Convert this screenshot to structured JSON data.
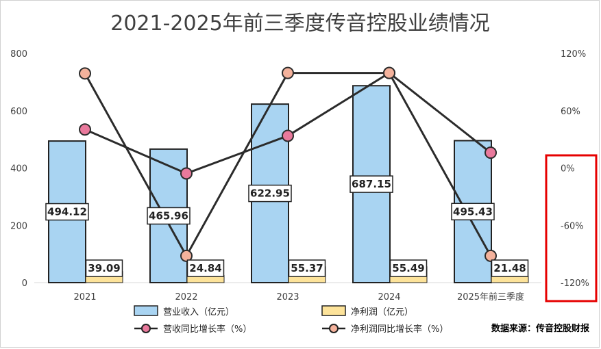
{
  "chart_data": {
    "type": "bar",
    "title": "2021-2025年前三季度传音控股业绩情况",
    "categories": [
      "2021",
      "2022",
      "2023",
      "2024",
      "2025年前三季度"
    ],
    "ylim": [
      0,
      800
    ],
    "y_ticks": [
      "0",
      "200",
      "400",
      "600",
      "800"
    ],
    "y2lim": [
      -120,
      120
    ],
    "y2_ticks": [
      "-120%",
      "-60%",
      "0%",
      "60%",
      "120%"
    ],
    "grid": false,
    "legend_position": "bottom",
    "series": [
      {
        "name": "营业收入（亿元）",
        "kind": "bar",
        "color": "#a9d4f2",
        "values": [
          494.12,
          465.96,
          622.95,
          687.15,
          495.43
        ],
        "labels": [
          "494.12",
          "465.96",
          "622.95",
          "687.15",
          "495.43"
        ]
      },
      {
        "name": "净利润（亿元）",
        "kind": "bar",
        "color": "#fde39a",
        "values": [
          39.09,
          24.84,
          55.37,
          55.49,
          21.48
        ],
        "labels": [
          "39.09",
          "24.84",
          "55.37",
          "55.49",
          "21.48"
        ]
      },
      {
        "name": "营收同比增长率（%）",
        "kind": "line",
        "axis": "right",
        "color": "#e9799c",
        "values": [
          40.3,
          -5.7,
          33.7,
          99.5,
          16.0
        ]
      },
      {
        "name": "净利润同比增长率（%）",
        "kind": "line",
        "axis": "right",
        "color": "#f4b29c",
        "values": [
          99.0,
          -92.0,
          99.5,
          99.5,
          -92.0
        ]
      }
    ],
    "source": "数据来源：传音控股财报"
  }
}
